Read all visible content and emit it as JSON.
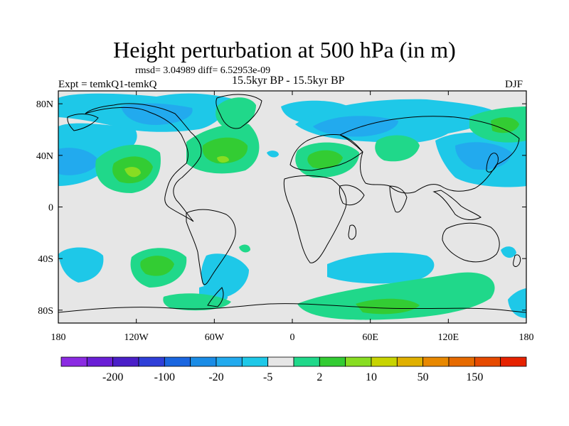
{
  "title": "Height perturbation at 500 hPa (in m)",
  "stats": "rmsd= 3.04989 diff= 6.52953e-09",
  "experiment": "Expt = temkQ1-temkQ",
  "period": "15.5kyr BP - 15.5kyr BP",
  "season": "DJF",
  "chart_data": {
    "type": "contour-map",
    "projection": "cylindrical-equidistant",
    "lon_range": [
      -180,
      180
    ],
    "lat_range": [
      -90,
      90
    ],
    "x_ticks": [
      {
        "value": -180,
        "label": "180"
      },
      {
        "value": -120,
        "label": "120W"
      },
      {
        "value": -60,
        "label": "60W"
      },
      {
        "value": 0,
        "label": "0"
      },
      {
        "value": 60,
        "label": "60E"
      },
      {
        "value": 120,
        "label": "120E"
      },
      {
        "value": 180,
        "label": "180"
      }
    ],
    "y_ticks": [
      {
        "value": 80,
        "label": "80N"
      },
      {
        "value": 40,
        "label": "40N"
      },
      {
        "value": 0,
        "label": "0"
      },
      {
        "value": -40,
        "label": "40S"
      },
      {
        "value": -80,
        "label": "80S"
      }
    ],
    "colorbar": {
      "colors": [
        "#8b2be2",
        "#6a1fd6",
        "#4a1fc8",
        "#2f3fd8",
        "#1a66e0",
        "#1a8ce6",
        "#22aaee",
        "#1ec8e8",
        "#e6e6e6",
        "#20d88a",
        "#33cc33",
        "#88dd22",
        "#c8d400",
        "#e0b000",
        "#e88800",
        "#e66a00",
        "#e64a00",
        "#e62200"
      ],
      "labels": [
        {
          "after_index": 1,
          "text": "-200"
        },
        {
          "after_index": 3,
          "text": "-100"
        },
        {
          "after_index": 5,
          "text": "-20"
        },
        {
          "after_index": 7,
          "text": "-5"
        },
        {
          "after_index": 9,
          "text": "2"
        },
        {
          "after_index": 11,
          "text": "10"
        },
        {
          "after_index": 13,
          "text": "50"
        },
        {
          "after_index": 15,
          "text": "150"
        }
      ]
    },
    "fields": {
      "background": "#e6e6e6",
      "negative_light": "#1ec8e8",
      "negative_mid": "#22aaee",
      "positive_light": "#20d88a",
      "positive_mid": "#33cc33",
      "positive_strong": "#88dd22"
    }
  }
}
